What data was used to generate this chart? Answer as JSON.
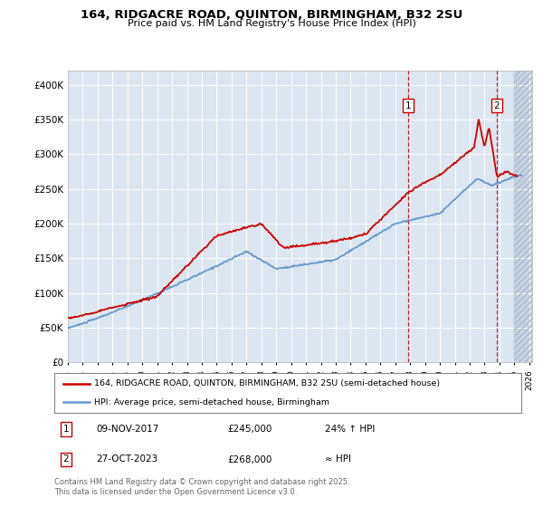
{
  "title": "164, RIDGACRE ROAD, QUINTON, BIRMINGHAM, B32 2SU",
  "subtitle": "Price paid vs. HM Land Registry's House Price Index (HPI)",
  "background_color": "#ffffff",
  "plot_bg_color": "#dce6f1",
  "hatch_region_color": "#c8d4e3",
  "grid_color": "#ffffff",
  "sale1_year": 2017.87,
  "sale2_year": 2023.83,
  "ylim": [
    0,
    420000
  ],
  "yticks": [
    0,
    50000,
    100000,
    150000,
    200000,
    250000,
    300000,
    350000,
    400000
  ],
  "ytick_labels": [
    "£0",
    "£50K",
    "£100K",
    "£150K",
    "£200K",
    "£250K",
    "£300K",
    "£350K",
    "£400K"
  ],
  "xlim_start": 1995.0,
  "xlim_end": 2026.2,
  "xtick_years": [
    1995,
    1996,
    1997,
    1998,
    1999,
    2000,
    2001,
    2002,
    2003,
    2004,
    2005,
    2006,
    2007,
    2008,
    2009,
    2010,
    2011,
    2012,
    2013,
    2014,
    2015,
    2016,
    2017,
    2018,
    2019,
    2020,
    2021,
    2022,
    2023,
    2024,
    2025,
    2026
  ],
  "hpi_line_color": "#6699cc",
  "price_line_color": "#cc0000",
  "legend1_label": "164, RIDGACRE ROAD, QUINTON, BIRMINGHAM, B32 2SU (semi-detached house)",
  "legend2_label": "HPI: Average price, semi-detached house, Birmingham",
  "footer": "Contains HM Land Registry data © Crown copyright and database right 2025.\nThis data is licensed under the Open Government Licence v3.0.",
  "note1_date": "09-NOV-2017",
  "note1_price": "£245,000",
  "note1_label": "24% ↑ HPI",
  "note2_date": "27-OCT-2023",
  "note2_price": "£268,000",
  "note2_label": "≈ HPI",
  "hatch_start": 2025.0
}
